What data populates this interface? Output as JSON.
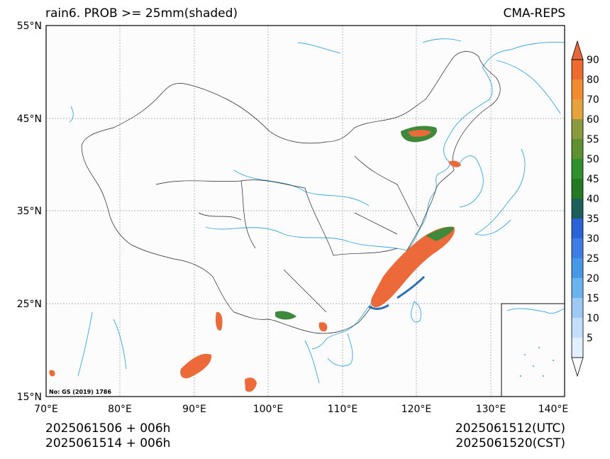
{
  "title_left": "rain6. PROB >= 25mm(shaded)",
  "title_right": "CMA-REPS",
  "attribution": "No: GS (2019) 1786",
  "lat_labels": [
    "15°N",
    "25°N",
    "35°N",
    "45°N",
    "55°N"
  ],
  "lon_labels": [
    "70°E",
    "80°E",
    "90°E",
    "100°E",
    "110°E",
    "120°E",
    "130°E",
    "140°E"
  ],
  "colorbar": {
    "labels": [
      "5",
      "10",
      "15",
      "20",
      "25",
      "30",
      "35",
      "40",
      "45",
      "50",
      "55",
      "60",
      "70",
      "80",
      "90"
    ],
    "colors": [
      "#e1efff",
      "#c3defa",
      "#9ccaf4",
      "#6ab4f0",
      "#4898e8",
      "#3c7ee6",
      "#2a62d8",
      "#1d5e5a",
      "#237a23",
      "#2f8f2f",
      "#5e8f30",
      "#8a9a3c",
      "#e6a23c",
      "#f28a30",
      "#ee6a2e",
      "#e8673b"
    ]
  },
  "footer": {
    "init_cst_line1": "2025061506  +  006h",
    "init_cst_line2": "2025061514  +  006h",
    "valid_utc": "2025061512(UTC)",
    "valid_cst": "2025061520(CST)"
  },
  "colors": {
    "coast": "#37a6dc",
    "border": "#222222",
    "precip_high": "#ec6a3a",
    "precip_green": "#3f8a3a",
    "precip_blue": "#2a6fb5"
  }
}
